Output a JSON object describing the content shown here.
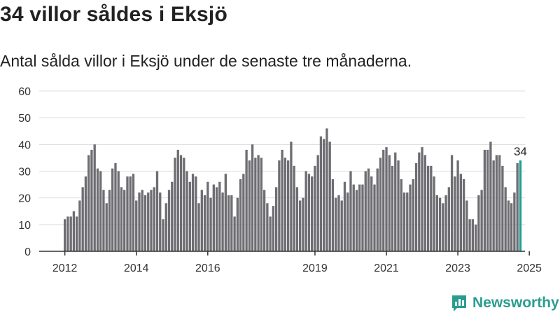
{
  "header": {
    "title": "34 villor såldes i Eksjö",
    "subtitle": "Antal sålda villor i Eksjö under de senaste tre månaderna."
  },
  "brand": {
    "name": "Newsworthy",
    "color": "#2a9d8f"
  },
  "colors": {
    "bar": "#6e6d72",
    "highlight": "#1f9d93",
    "grid": "#dddddd",
    "axis": "#333333"
  },
  "chart_data": {
    "type": "bar",
    "title": "34 villor såldes i Eksjö",
    "subtitle": "Antal sålda villor i Eksjö under de senaste tre månaderna.",
    "xlabel": "",
    "ylabel": "",
    "ylim": [
      0,
      60
    ],
    "yticks": [
      0,
      10,
      20,
      30,
      40,
      50,
      60
    ],
    "xticks": [
      "2012",
      "2014",
      "2016",
      "2019",
      "2021",
      "2023",
      "2025"
    ],
    "grid": true,
    "bar_label": "34",
    "highlight": "last",
    "values": [
      12,
      13,
      13,
      15,
      13,
      19,
      24,
      28,
      36,
      38,
      40,
      31,
      30,
      23,
      18,
      23,
      31,
      33,
      30,
      24,
      23,
      28,
      28,
      29,
      19,
      22,
      23,
      21,
      22,
      23,
      24,
      30,
      22,
      12,
      18,
      23,
      26,
      35,
      38,
      36,
      35,
      30,
      26,
      29,
      28,
      18,
      23,
      21,
      26,
      20,
      25,
      24,
      26,
      22,
      29,
      21,
      21,
      13,
      20,
      27,
      29,
      38,
      34,
      40,
      35,
      36,
      35,
      23,
      18,
      13,
      17,
      24,
      34,
      38,
      35,
      34,
      41,
      32,
      24,
      19,
      20,
      30,
      29,
      28,
      32,
      36,
      43,
      42,
      46,
      41,
      27,
      20,
      21,
      19,
      26,
      22,
      30,
      25,
      23,
      25,
      25,
      30,
      31,
      28,
      25,
      31,
      35,
      38,
      39,
      36,
      32,
      37,
      34,
      27,
      22,
      22,
      25,
      27,
      33,
      37,
      39,
      36,
      32,
      32,
      28,
      21,
      20,
      18,
      21,
      24,
      36,
      28,
      34,
      29,
      27,
      19,
      12,
      12,
      10,
      21,
      23,
      38,
      38,
      41,
      34,
      36,
      36,
      32,
      24,
      19,
      18,
      22,
      33,
      34
    ]
  }
}
